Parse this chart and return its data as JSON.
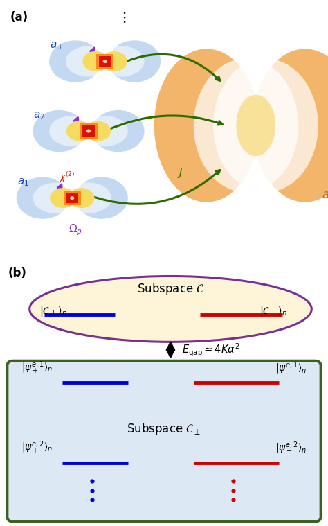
{
  "fig_width": 4.74,
  "fig_height": 7.59,
  "dpi": 100,
  "panel_a_label": "(a)",
  "panel_b_label": "(b)",
  "top_ellipse_bg": "#fef5d8",
  "top_ellipse_border": "#7b2f8e",
  "bottom_box_bg": "#dce8f4",
  "bottom_box_border": "#3d6020",
  "blue_color": "#0000dd",
  "red_color": "#cc0000",
  "arrow_color": "#000000",
  "subspace_c_label": "Subspace $\\mathcal{C}$",
  "subspace_cperp_label": "Subspace $\\mathcal{C}_\\perp$",
  "ket_cplus": "$|\\mathcal{C}_+\\rangle_n$",
  "ket_cminus": "$|\\mathcal{C}_-\\rangle_n$",
  "ket_psi_e1_plus": "$|\\psi_+^{e,1}\\rangle_n$",
  "ket_psi_e1_minus": "$|\\psi_-^{e,1}\\rangle_n$",
  "ket_psi_e2_plus": "$|\\psi_+^{e,2}\\rangle_n$",
  "ket_psi_e2_minus": "$|\\psi_-^{e,2}\\rangle_n$",
  "egap_label": "$E_{\\mathrm{gap}} \\simeq 4K\\alpha^2$",
  "green_arrow": "#2d6b00",
  "purple_arrow": "#8833cc",
  "orange_label": "#c86820",
  "blue_label": "#1a44cc"
}
